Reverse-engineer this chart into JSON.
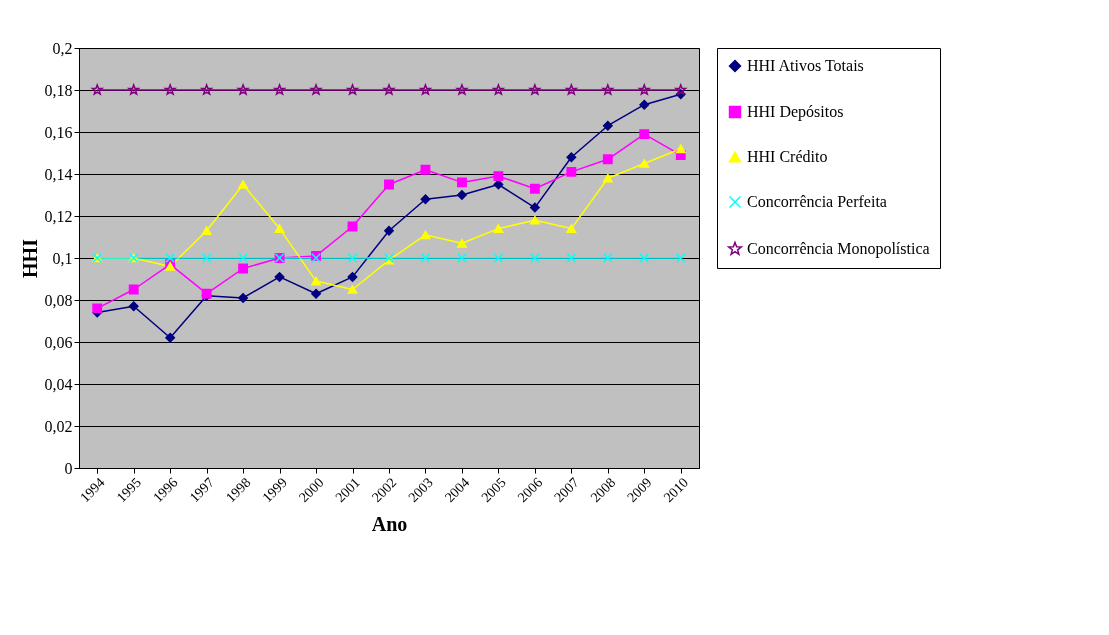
{
  "chart_data": {
    "type": "line",
    "xlabel": "Ano",
    "ylabel": "HHI",
    "categories": [
      "1994",
      "1995",
      "1996",
      "1997",
      "1998",
      "1999",
      "2000",
      "2001",
      "2002",
      "2003",
      "2004",
      "2005",
      "2006",
      "2007",
      "2008",
      "2009",
      "2010"
    ],
    "ylim": [
      0,
      0.2
    ],
    "yticks": [
      {
        "value": 0,
        "label": "0"
      },
      {
        "value": 0.02,
        "label": "0,02"
      },
      {
        "value": 0.04,
        "label": "0,04"
      },
      {
        "value": 0.06,
        "label": "0,06"
      },
      {
        "value": 0.08,
        "label": "0,08"
      },
      {
        "value": 0.1,
        "label": "0,1"
      },
      {
        "value": 0.12,
        "label": "0,12"
      },
      {
        "value": 0.14,
        "label": "0,14"
      },
      {
        "value": 0.16,
        "label": "0,16"
      },
      {
        "value": 0.18,
        "label": "0,18"
      },
      {
        "value": 0.2,
        "label": "0,2"
      }
    ],
    "grid": "y",
    "legend": "right",
    "series": [
      {
        "name": "HHI Ativos Totais",
        "color": "#000080",
        "marker": "diamond",
        "values": [
          0.074,
          0.077,
          0.062,
          0.082,
          0.081,
          0.091,
          0.083,
          0.091,
          0.113,
          0.128,
          0.13,
          0.135,
          0.124,
          0.148,
          0.163,
          0.173,
          0.178
        ]
      },
      {
        "name": "HHI Depósitos",
        "color": "#ff00ff",
        "marker": "square",
        "values": [
          0.076,
          0.085,
          0.097,
          0.083,
          0.095,
          0.1,
          0.101,
          0.115,
          0.135,
          0.142,
          0.136,
          0.139,
          0.133,
          0.141,
          0.147,
          0.159,
          0.149
        ]
      },
      {
        "name": "HHI Crédito",
        "color": "#ffff00",
        "marker": "triangle",
        "values": [
          0.1,
          0.1,
          0.096,
          0.113,
          0.135,
          0.114,
          0.089,
          0.085,
          0.099,
          0.111,
          0.107,
          0.114,
          0.118,
          0.114,
          0.138,
          0.145,
          0.152
        ]
      },
      {
        "name": "Concorrência Perfeita",
        "color": "#00ffff",
        "marker": "cross",
        "values": [
          0.1,
          0.1,
          0.1,
          0.1,
          0.1,
          0.1,
          0.1,
          0.1,
          0.1,
          0.1,
          0.1,
          0.1,
          0.1,
          0.1,
          0.1,
          0.1,
          0.1
        ]
      },
      {
        "name": "Concorrência Monopolística",
        "color": "#800080",
        "marker": "star",
        "values": [
          0.18,
          0.18,
          0.18,
          0.18,
          0.18,
          0.18,
          0.18,
          0.18,
          0.18,
          0.18,
          0.18,
          0.18,
          0.18,
          0.18,
          0.18,
          0.18,
          0.18
        ]
      }
    ]
  }
}
